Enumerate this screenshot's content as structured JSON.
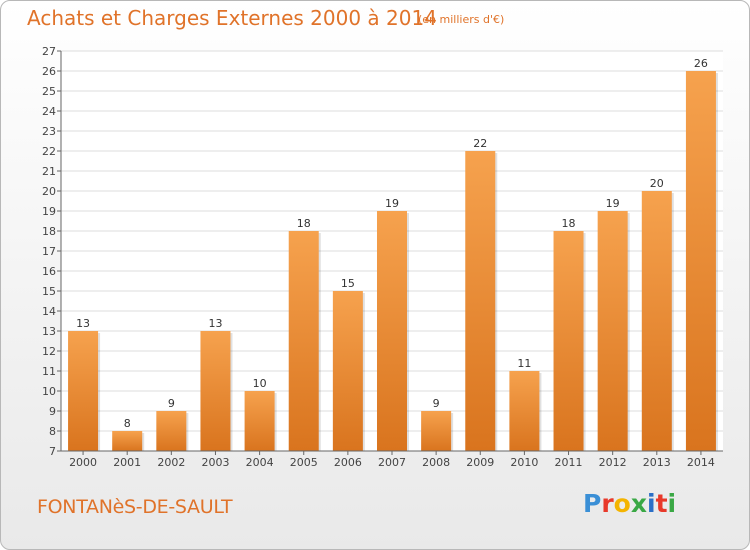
{
  "header": {
    "title": "Achats et Charges Externes 2000 à 2014",
    "unit": "(en milliers d'€)"
  },
  "footer": {
    "commune": "FONTANèS-DE-SAULT",
    "logo_letters": [
      "P",
      "r",
      "o",
      "x",
      "i",
      "t",
      "i"
    ],
    "logo_colors": [
      "#3a8fd6",
      "#e8392a",
      "#f4b400",
      "#3aa845",
      "#2b6fc7",
      "#e8392a",
      "#3aa845"
    ]
  },
  "chart_data": {
    "type": "bar",
    "categories": [
      "2000",
      "2001",
      "2002",
      "2003",
      "2004",
      "2005",
      "2006",
      "2007",
      "2008",
      "2009",
      "2010",
      "2011",
      "2012",
      "2013",
      "2014"
    ],
    "values": [
      13,
      8,
      9,
      13,
      10,
      18,
      15,
      19,
      9,
      22,
      11,
      18,
      19,
      20,
      26
    ],
    "title": "Achats et Charges Externes 2000 à 2014",
    "ylim": [
      7,
      27
    ],
    "yticks": [
      7,
      8,
      9,
      10,
      11,
      12,
      13,
      14,
      15,
      16,
      17,
      18,
      19,
      20,
      21,
      22,
      23,
      24,
      25,
      26,
      27
    ],
    "grid": true,
    "bar_color_light": "#f6a24e",
    "bar_color_dark": "#d9741e"
  }
}
